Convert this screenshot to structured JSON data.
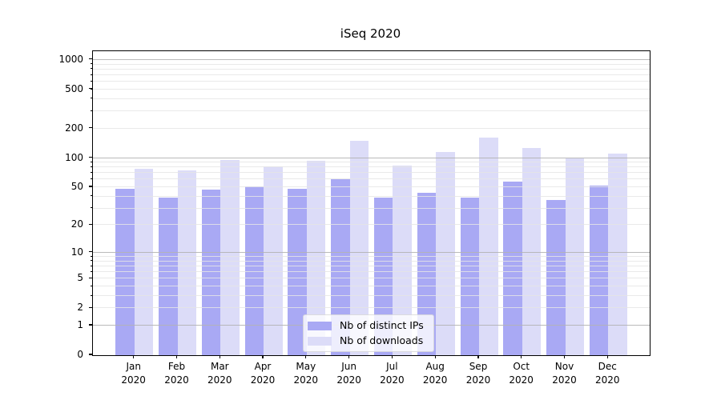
{
  "title": "iSeq 2020",
  "chart_data": {
    "type": "bar",
    "title": "iSeq 2020",
    "y_scale": "log10(1+value)",
    "categories": [
      "Jan",
      "Feb",
      "Mar",
      "Apr",
      "May",
      "Jun",
      "Jul",
      "Aug",
      "Sep",
      "Oct",
      "Nov",
      "Dec"
    ],
    "category_year": "2020",
    "series": [
      {
        "name": "Nb of distinct IPs",
        "color": "#a9a9f4",
        "values": [
          48,
          39,
          47,
          51,
          48,
          60,
          39,
          44,
          39,
          57,
          37,
          52
        ]
      },
      {
        "name": "Nb of downloads",
        "color": "#dcdcf8",
        "values": [
          77,
          74,
          96,
          82,
          93,
          150,
          84,
          115,
          162,
          127,
          100,
          110
        ]
      }
    ],
    "y_ticks": [
      0,
      1,
      2,
      5,
      10,
      20,
      50,
      100,
      200,
      500,
      1000
    ],
    "y_major_gridlines": [
      1,
      10,
      100,
      1000
    ],
    "ylim": [
      0,
      1228
    ],
    "xlabel": "",
    "ylabel": "",
    "grid": true,
    "legend_position": "lower center"
  },
  "colors": {
    "bar_ips": "#a9a9f4",
    "bar_downloads": "#dcdcf8",
    "major_grid": "#b3b3b3",
    "minor_grid": "#e5e5e5",
    "axis": "#000000",
    "text": "#000000",
    "legend_background": "rgba(255,255,255,0.8)"
  }
}
